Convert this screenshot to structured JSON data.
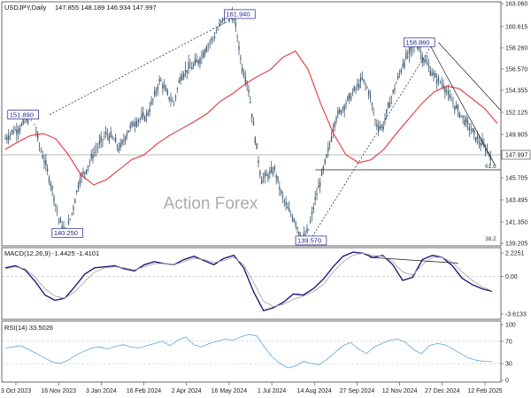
{
  "header": {
    "symbol": "USDJPY,Daily",
    "ohlc": "147.855 148.189 146.934 147.997",
    "watermark": "Action Forex"
  },
  "colors": {
    "candle": "#3d5a73",
    "ma": "#e8333b",
    "macd_main": "#1b1b7a",
    "macd_signal": "#a9a9a9",
    "rsi": "#5aa5de",
    "trendline": "#1a1a1a",
    "label_box_border": "#1f1f8a"
  },
  "chart_data": [
    {
      "type": "candlestick",
      "title": "USDJPY,Daily",
      "y_ticks": [
        "163.060",
        "160.615",
        "158.260",
        "156.570",
        "154.355",
        "152.125",
        "149.905",
        "147.997",
        "145.705",
        "143.495",
        "141.350",
        "139.205"
      ],
      "ylim": [
        139.205,
        163.06
      ],
      "x_tick_labels": [
        "3 Oct 2023",
        "16 Nov 2023",
        "3 Jan 2024",
        "16 Feb 2024",
        "2 Apr 2024",
        "16 May 2024",
        "1 Jul 2024",
        "14 Aug 2024",
        "27 Sep 2024",
        "12 Nov 2024",
        "27 Dec 2024",
        "12 Feb 2025"
      ],
      "current_price": "147.997",
      "annotations": [
        "161.940",
        "151.890",
        "140.250",
        "139.570",
        "158.860",
        "61.8",
        "38.2"
      ],
      "series": [
        {
          "name": "USDJPY",
          "close_approx": [
            149.5,
            150.2,
            150.5,
            151.2,
            151.89,
            149.0,
            147.0,
            144.5,
            141.5,
            140.25,
            142.5,
            145.5,
            146.5,
            148.0,
            149.0,
            150.0,
            149.5,
            148.5,
            150.0,
            151.0,
            151.5,
            151.8,
            153.5,
            155.5,
            154.0,
            153.0,
            155.8,
            156.5,
            156.8,
            157.5,
            158.5,
            159.5,
            161.0,
            161.94,
            161.5,
            157.0,
            155.0,
            150.0,
            145.5,
            146.0,
            146.5,
            144.0,
            142.5,
            141.5,
            139.57,
            140.5,
            143.5,
            146.0,
            148.5,
            151.5,
            152.5,
            153.5,
            154.5,
            155.5,
            154.2,
            151.0,
            150.5,
            153.0,
            155.0,
            157.0,
            157.8,
            158.86,
            157.5,
            156.5,
            155.5,
            155.0,
            153.5,
            152.5,
            151.5,
            150.5,
            149.5,
            148.8,
            147.997
          ]
        },
        {
          "name": "MA",
          "values_approx": [
            148.5,
            149.2,
            149.8,
            150.0,
            149.5,
            148.0,
            146.0,
            145.0,
            145.5,
            146.5,
            147.5,
            148.0,
            149.0,
            149.8,
            150.5,
            151.2,
            152.0,
            153.2,
            154.0,
            155.0,
            155.8,
            156.5,
            157.5,
            158.0,
            156.5,
            153.0,
            150.0,
            148.0,
            147.2,
            147.5,
            148.5,
            150.0,
            151.5,
            153.0,
            154.2,
            154.8,
            154.5,
            153.5,
            152.5,
            151.0
          ]
        }
      ]
    },
    {
      "type": "line",
      "title": "MACD(12,26,9) -1.4425 -1.4101",
      "y_ticks": [
        "2.2251",
        "0.00",
        "-3.6133"
      ],
      "ylim": [
        -3.6133,
        2.2251
      ],
      "series": [
        {
          "name": "MACD",
          "values_approx": [
            0.8,
            1.0,
            0.6,
            -0.5,
            -1.8,
            -2.3,
            -2.1,
            -1.0,
            0.2,
            0.8,
            0.9,
            1.0,
            0.7,
            0.5,
            1.1,
            1.4,
            1.2,
            1.1,
            1.6,
            1.9,
            1.5,
            1.1,
            1.7,
            2.0,
            0.8,
            -1.5,
            -3.3,
            -3.0,
            -2.5,
            -1.7,
            -1.8,
            -1.2,
            -0.3,
            0.9,
            1.9,
            2.3,
            2.2,
            1.8,
            2.0,
            1.1,
            -0.4,
            -0.1,
            1.6,
            2.0,
            1.8,
            1.0,
            -0.2,
            -0.8,
            -1.2,
            -1.45
          ]
        },
        {
          "name": "Signal",
          "values_approx": [
            0.7,
            0.9,
            0.7,
            -0.1,
            -1.2,
            -1.9,
            -2.1,
            -1.5,
            -0.5,
            0.4,
            0.8,
            0.9,
            0.8,
            0.6,
            0.9,
            1.2,
            1.2,
            1.1,
            1.4,
            1.7,
            1.6,
            1.3,
            1.5,
            1.8,
            1.1,
            -0.6,
            -2.4,
            -2.9,
            -2.7,
            -2.2,
            -1.9,
            -1.5,
            -0.8,
            0.4,
            1.4,
            2.0,
            2.2,
            2.0,
            1.9,
            1.4,
            0.4,
            0.1,
            1.1,
            1.8,
            1.8,
            1.3,
            0.4,
            -0.4,
            -1.0,
            -1.41
          ]
        }
      ]
    },
    {
      "type": "line",
      "title": "RSI(14) 33.5026",
      "y_ticks": [
        "100",
        "70",
        "30",
        "0"
      ],
      "ylim": [
        0,
        100
      ],
      "series": [
        {
          "name": "RSI(14)",
          "values_approx": [
            58,
            60,
            62,
            55,
            48,
            40,
            33,
            30,
            36,
            45,
            52,
            58,
            60,
            56,
            61,
            64,
            60,
            58,
            62,
            66,
            70,
            62,
            72,
            78,
            64,
            60,
            66,
            70,
            74,
            72,
            78,
            82,
            80,
            60,
            42,
            30,
            22,
            26,
            34,
            30,
            28,
            38,
            50,
            62,
            68,
            56,
            48,
            60,
            66,
            72,
            74,
            68,
            55,
            48,
            62,
            66,
            64,
            56,
            48,
            40,
            36,
            34,
            33.5
          ]
        }
      ]
    }
  ]
}
